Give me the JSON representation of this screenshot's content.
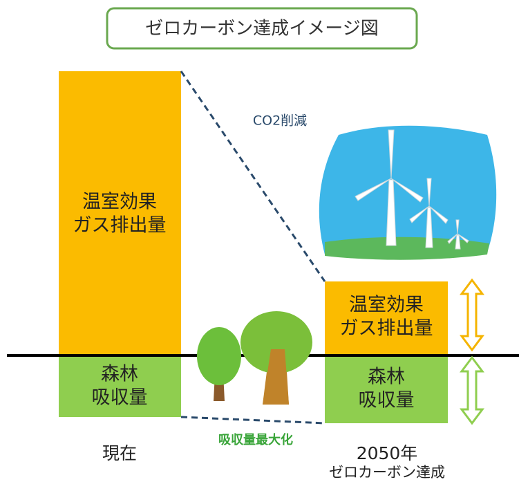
{
  "title": "ゼロカーボン達成イメージ図",
  "co2_label": "CO2削減",
  "absorb_label": "吸収量最大化",
  "current": {
    "emission": [
      "温室効果",
      "ガス排出量"
    ],
    "absorption": [
      "森林",
      "吸収量"
    ],
    "label": "現在"
  },
  "future": {
    "emission": [
      "温室効果",
      "ガス排出量"
    ],
    "absorption": [
      "森林",
      "吸収量"
    ],
    "label": [
      "2050年",
      "ゼロカーボン達成"
    ]
  }
}
